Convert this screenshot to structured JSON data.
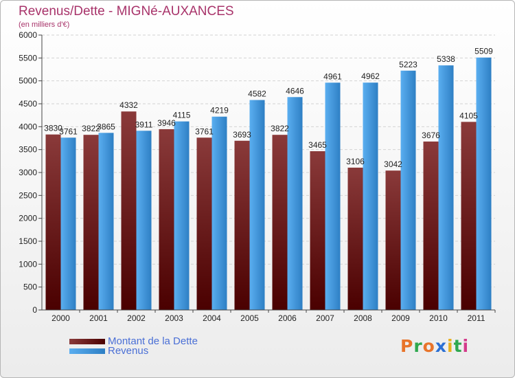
{
  "title": "Revenus/Dette - MIGNé-AUXANCES",
  "subtitle": "(en milliers d'€)",
  "colors": {
    "dette_top": "#8a3a3a",
    "dette_bottom": "#4a0000",
    "revenus_top": "#5aaef0",
    "revenus_bottom": "#2e7fc4",
    "title": "#a8336a",
    "legend_text": "#4a6fd6"
  },
  "legend": [
    {
      "label": "Montant de la Dette",
      "icon": "dette-swatch"
    },
    {
      "label": "Revenus",
      "icon": "revenus-swatch"
    }
  ],
  "logo": {
    "text": "Proxiti",
    "letters": [
      "P",
      "r",
      "o",
      "x",
      "i",
      "t",
      "i"
    ]
  },
  "chart_data": {
    "type": "bar",
    "categories": [
      "2000",
      "2001",
      "2002",
      "2003",
      "2004",
      "2005",
      "2006",
      "2007",
      "2008",
      "2009",
      "2010",
      "2011"
    ],
    "series": [
      {
        "name": "Montant de la Dette",
        "values": [
          3830,
          3822,
          4332,
          3946,
          3761,
          3693,
          3822,
          3465,
          3106,
          3042,
          3676,
          4105
        ]
      },
      {
        "name": "Revenus",
        "values": [
          3761,
          3865,
          3911,
          4115,
          4219,
          4582,
          4646,
          4961,
          4962,
          5223,
          5338,
          5509
        ]
      }
    ],
    "ylim": [
      0,
      6000
    ],
    "yticks": [
      0,
      500,
      1000,
      1500,
      2000,
      2500,
      3000,
      3500,
      4000,
      4500,
      5000,
      5500,
      6000
    ],
    "grid": true,
    "legend_position": "bottom-left"
  }
}
